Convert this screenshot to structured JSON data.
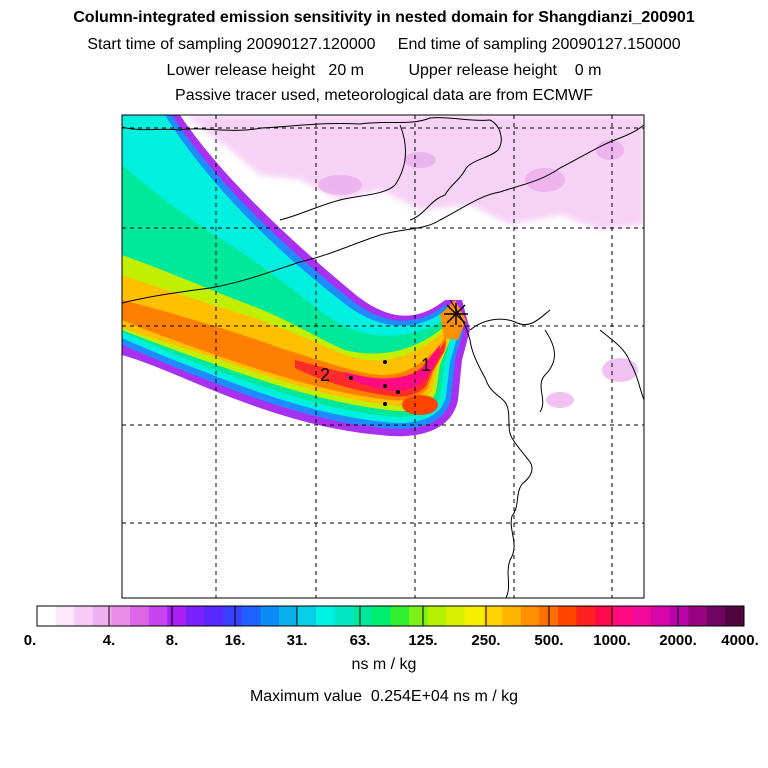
{
  "header": {
    "title": "Column-integrated emission sensitivity in nested domain for Shangdianzi_200901",
    "line2": "Start time of sampling 20090127.120000     End time of sampling 20090127.150000",
    "line3": "Lower release height   20 m          Upper release height    0 m",
    "line4": "Passive tracer used, meteorological data are from ECMWF"
  },
  "map": {
    "site_labels": [
      "1",
      "2"
    ]
  },
  "colorbar": {
    "ticks": [
      "0.",
      "4.",
      "8.",
      "16.",
      "31.",
      "63.",
      "125.",
      "250.",
      "500.",
      "1000.",
      "2000.",
      "4000."
    ],
    "unit": "ns m / kg",
    "colors": [
      "#ffffff",
      "#fbe6fb",
      "#f6ccf6",
      "#f0b0f0",
      "#e88ee8",
      "#dd66e8",
      "#c844f0",
      "#a820f4",
      "#7a20ff",
      "#5828ff",
      "#3a40ff",
      "#1c60ff",
      "#0a8cf4",
      "#08b0ec",
      "#06d0e8",
      "#00f2e4",
      "#00e6c0",
      "#00e898",
      "#00ee6c",
      "#30f030",
      "#7cf018",
      "#b4f000",
      "#d8f000",
      "#f4f000",
      "#ffd200",
      "#ffb400",
      "#ff9000",
      "#ff6e00",
      "#ff4400",
      "#ff2020",
      "#ff0a4a",
      "#ff0a82",
      "#f0089a",
      "#d806a8",
      "#b804a8",
      "#980480",
      "#700460",
      "#500440"
    ]
  },
  "footer": {
    "max_value_text": "Maximum value  0.254E+04 ns m / kg"
  }
}
